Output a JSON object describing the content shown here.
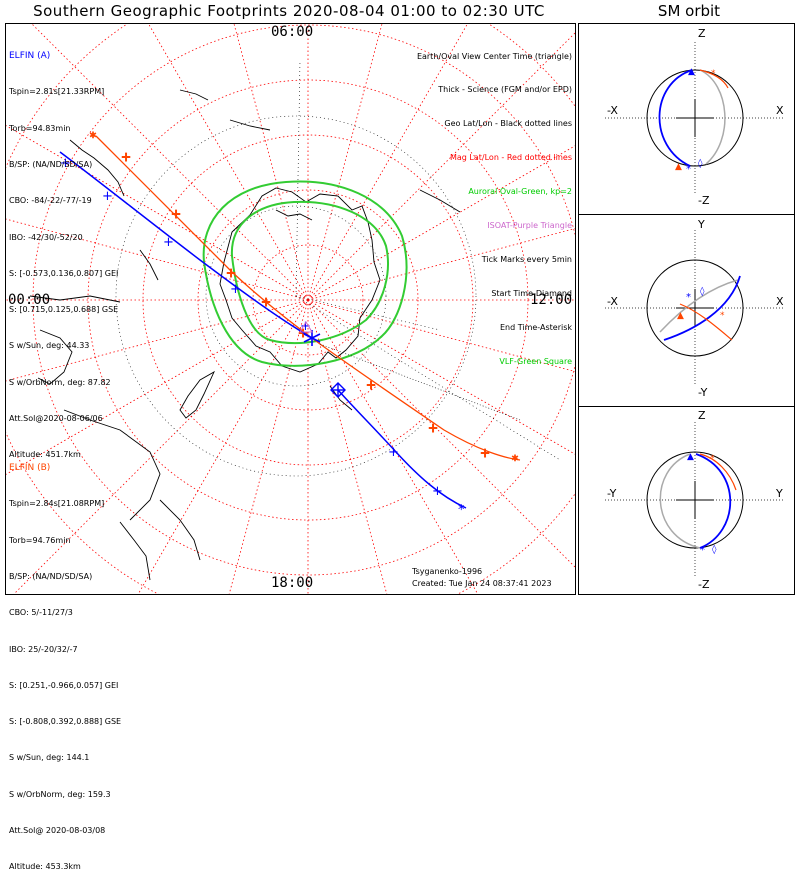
{
  "title": "Southern Geographic Footprints 2020-08-04 01:00 to 02:30 UTC",
  "sm_title": "SM orbit",
  "mlt_labels": {
    "top": "06:00",
    "left": "00:00",
    "right": "12:00",
    "bottom": "18:00"
  },
  "elfin_a": {
    "name": "ELFIN (A)",
    "color": "#0000ff",
    "lines": [
      "Tspin=2.81s[21.33RPM]",
      "Torb=94.83min",
      "B/SP: (NA/ND/SD/SA)",
      "CBO: -84/-22/-77/-19",
      "IBO: -42/30/-52/20",
      "S: [-0.573,0.136,0.807] GEI",
      "S: [0.715,0.125,0.688] GSE",
      "S w/Sun, deg: 44.33",
      "S w/OrbNorm, deg: 87.82",
      "Att.Sol@2020-08-06/06",
      "Altitude: 451.7km"
    ]
  },
  "elfin_b": {
    "name": "ELFIN (B)",
    "color": "#ff4500",
    "lines": [
      "Tspin=2.84s[21.08RPM]",
      "Torb=94.76min",
      "B/SP: (NA/ND/SD/SA)",
      "CBO: 5/-11/27/3",
      "IBO: 25/-20/32/-7",
      "S: [0.251,-0.966,0.057] GEI",
      "S: [-0.808,0.392,0.888] GSE",
      "S w/Sun, deg: 144.1",
      "S w/OrbNorm, deg: 159.3",
      "Att.Sol@ 2020-08-03/08",
      "Altitude: 453.3km"
    ]
  },
  "legend": [
    {
      "text": "Earth/Oval View Center Time (triangle)",
      "color": "#000000"
    },
    {
      "text": "Thick - Science (FGM and/or EPD)",
      "color": "#000000"
    },
    {
      "text": "Geo Lat/Lon - Black dotted lines",
      "color": "#000000"
    },
    {
      "text": "Mag Lat/Lon - Red dotted lines",
      "color": "#ff0000"
    },
    {
      "text": "Auroral Oval-Green, kp=2",
      "color": "#00cc00"
    },
    {
      "text": "ISOAT-Purple Triangle",
      "color": "#cc66cc"
    },
    {
      "text": "Tick Marks every 5min",
      "color": "#000000"
    },
    {
      "text": "Start Time-Diamond",
      "color": "#000000"
    },
    {
      "text": "End Time-Asterisk",
      "color": "#000000"
    },
    {
      "text": "VLF-Green Square",
      "color": "#00cc00"
    }
  ],
  "footer": {
    "credit": "Tsyganenko-1996",
    "created": "Created: Tue Jan 24 08:37:41 2023"
  },
  "sm_panels": [
    {
      "top": "Z",
      "bottom": "-Z",
      "left": "-X",
      "right": "X"
    },
    {
      "top": "Y",
      "bottom": "-Y",
      "left": "-X",
      "right": "X"
    },
    {
      "top": "Z",
      "bottom": "-Z",
      "left": "-Y",
      "right": "Y"
    }
  ],
  "colors": {
    "track_a": "#0000ff",
    "track_b": "#ff4500",
    "oval": "#00cc00",
    "mag_grid": "#ff0000",
    "coast": "#000000"
  }
}
